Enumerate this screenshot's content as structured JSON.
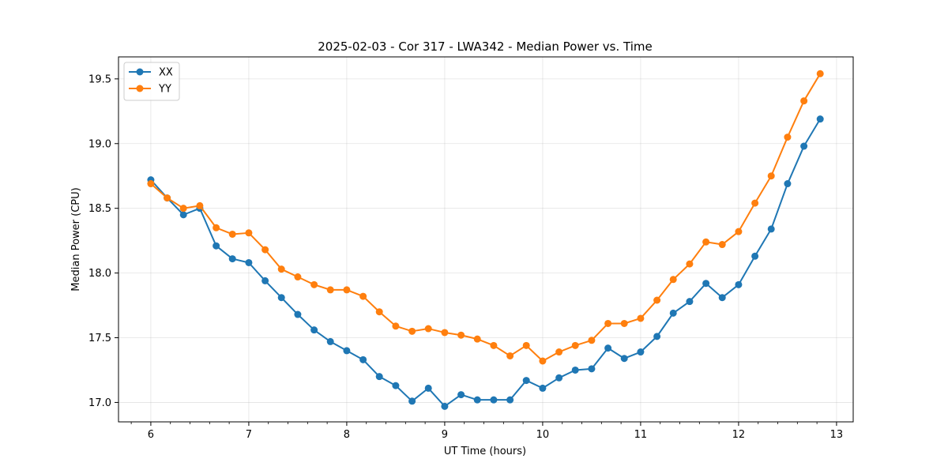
{
  "chart_data": {
    "type": "line",
    "title": "2025-02-03 - Cor 317 - LWA342 - Median Power vs. Time",
    "xlabel": "UT Time (hours)",
    "ylabel": "Median Power (CPU)",
    "xlim": [
      5.67,
      13.17
    ],
    "ylim": [
      16.85,
      19.67
    ],
    "xticks": [
      6,
      7,
      8,
      9,
      10,
      11,
      12,
      13
    ],
    "xtick_labels": [
      "6",
      "7",
      "8",
      "9",
      "10",
      "11",
      "12",
      "13"
    ],
    "yticks": [
      17.0,
      17.5,
      18.0,
      18.5,
      19.0,
      19.5
    ],
    "ytick_labels": [
      "17.0",
      "17.5",
      "18.0",
      "18.5",
      "19.0",
      "19.5"
    ],
    "grid": true,
    "legend_position": "top-left",
    "x": [
      6.0,
      6.167,
      6.333,
      6.5,
      6.667,
      6.833,
      7.0,
      7.167,
      7.333,
      7.5,
      7.667,
      7.833,
      8.0,
      8.167,
      8.333,
      8.5,
      8.667,
      8.833,
      9.0,
      9.167,
      9.333,
      9.5,
      9.667,
      9.833,
      10.0,
      10.167,
      10.333,
      10.5,
      10.667,
      10.833,
      11.0,
      11.167,
      11.333,
      11.5,
      11.667,
      11.833,
      12.0,
      12.167,
      12.333,
      12.5,
      12.667,
      12.833
    ],
    "series": [
      {
        "name": "XX",
        "color": "#1f77b4",
        "values": [
          18.72,
          18.58,
          18.45,
          18.5,
          18.21,
          18.11,
          18.08,
          17.94,
          17.81,
          17.68,
          17.56,
          17.47,
          17.4,
          17.33,
          17.2,
          17.13,
          17.01,
          17.11,
          16.97,
          17.06,
          17.02,
          17.02,
          17.02,
          17.17,
          17.11,
          17.19,
          17.25,
          17.26,
          17.42,
          17.34,
          17.39,
          17.51,
          17.69,
          17.78,
          17.92,
          17.81,
          17.91,
          18.13,
          18.34,
          18.69,
          18.98,
          19.19
        ]
      },
      {
        "name": "YY",
        "color": "#ff7f0e",
        "values": [
          18.69,
          18.58,
          18.5,
          18.52,
          18.35,
          18.3,
          18.31,
          18.18,
          18.03,
          17.97,
          17.91,
          17.87,
          17.87,
          17.82,
          17.7,
          17.59,
          17.55,
          17.57,
          17.54,
          17.52,
          17.49,
          17.44,
          17.36,
          17.44,
          17.32,
          17.39,
          17.44,
          17.48,
          17.61,
          17.61,
          17.65,
          17.79,
          17.95,
          18.07,
          18.24,
          18.22,
          18.32,
          18.54,
          18.75,
          19.05,
          19.33,
          19.54
        ]
      }
    ]
  }
}
